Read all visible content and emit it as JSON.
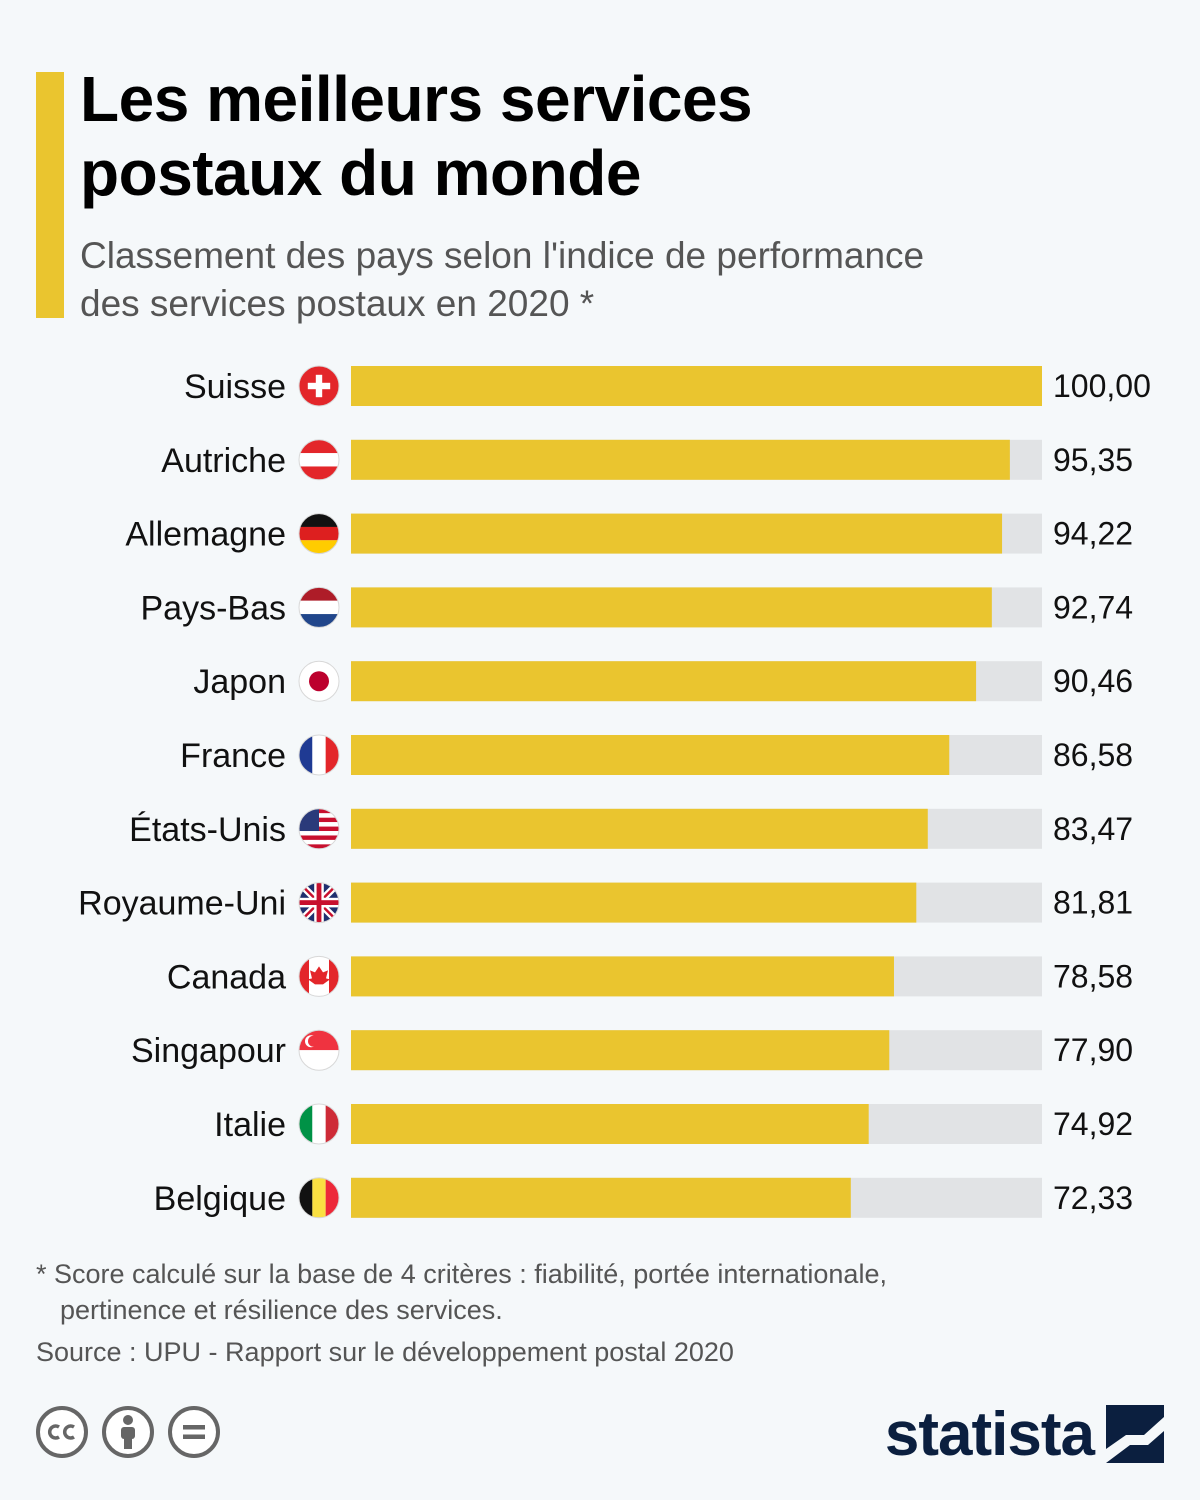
{
  "header": {
    "title_line1": "Les meilleurs services",
    "title_line2": "postaux du monde",
    "subtitle_line1": "Classement des pays selon l'indice de performance",
    "subtitle_line2": "des services postaux en 2020 *"
  },
  "colors": {
    "accent": "#eac52f",
    "bar": "#eac52f",
    "track": "#e1e3e5",
    "text": "#111111",
    "muted": "#555555",
    "brand": "#0b1f3f"
  },
  "chart_data": {
    "type": "bar",
    "orientation": "horizontal",
    "title": "Les meilleurs services postaux du monde",
    "subtitle": "Classement des pays selon l'indice de performance des services postaux en 2020 *",
    "categories": [
      "Suisse",
      "Autriche",
      "Allemagne",
      "Pays-Bas",
      "Japon",
      "France",
      "États-Unis",
      "Royaume-Uni",
      "Canada",
      "Singapour",
      "Italie",
      "Belgique"
    ],
    "flags": [
      "switzerland-flag-icon",
      "austria-flag-icon",
      "germany-flag-icon",
      "netherlands-flag-icon",
      "japan-flag-icon",
      "france-flag-icon",
      "usa-flag-icon",
      "uk-flag-icon",
      "canada-flag-icon",
      "singapore-flag-icon",
      "italy-flag-icon",
      "belgium-flag-icon"
    ],
    "values": [
      100.0,
      95.35,
      94.22,
      92.74,
      90.46,
      86.58,
      83.47,
      81.81,
      78.58,
      77.9,
      74.92,
      72.33
    ],
    "value_labels": [
      "100,00",
      "95,35",
      "94,22",
      "92,74",
      "90,46",
      "86,58",
      "83,47",
      "81,81",
      "78,58",
      "77,90",
      "74,92",
      "72,33"
    ],
    "xlim": [
      0,
      100
    ],
    "grid": false,
    "legend": "none"
  },
  "footer": {
    "note_line1": "* Score calculé sur la base de 4 critères : fiabilité, portée internationale,",
    "note_line2": "pertinence et résilience des services.",
    "source": "Source : UPU - Rapport sur le développement postal 2020",
    "brand": "statista",
    "license_icons": [
      "cc-icon",
      "attribution-icon",
      "no-derivatives-icon"
    ]
  }
}
